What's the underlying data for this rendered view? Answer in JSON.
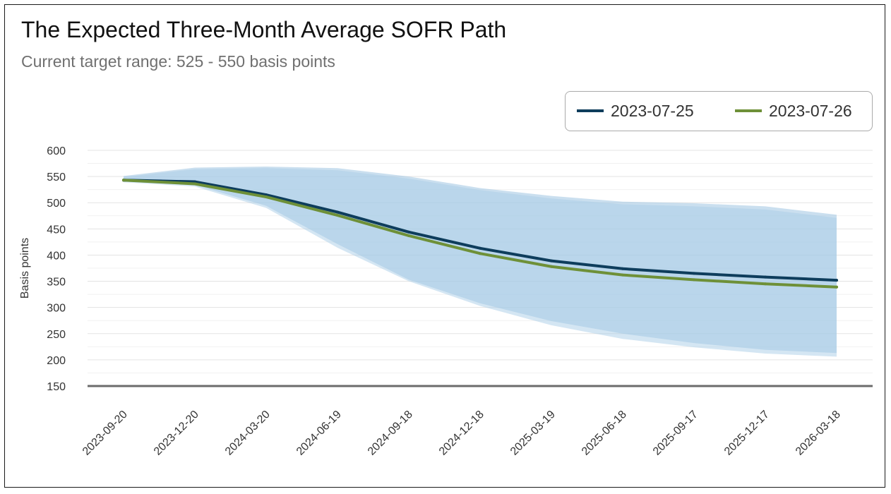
{
  "chart_data": {
    "type": "line",
    "title": "The Expected Three-Month Average SOFR Path",
    "subtitle": "Current target range: 525 - 550 basis points",
    "xlabel": "",
    "ylabel": "Basis points",
    "ylim": [
      150,
      600
    ],
    "yticks": [
      150,
      200,
      250,
      300,
      350,
      400,
      450,
      500,
      550,
      600
    ],
    "categories": [
      "2023-09-20",
      "2023-12-20",
      "2024-03-20",
      "2024-06-19",
      "2024-09-18",
      "2024-12-18",
      "2025-03-19",
      "2025-06-18",
      "2025-09-17",
      "2025-12-17",
      "2026-03-18"
    ],
    "series": [
      {
        "name": "2023-07-25",
        "color": "#0e3d5c",
        "values": [
          543,
          540,
          515,
          482,
          444,
          413,
          389,
          374,
          365,
          358,
          352
        ]
      },
      {
        "name": "2023-07-26",
        "color": "#6e9038",
        "values": [
          543,
          536,
          511,
          476,
          437,
          403,
          378,
          362,
          353,
          345,
          339
        ]
      }
    ],
    "bands": [
      {
        "name": "2023-07-25 range",
        "color": "#9fc5e2",
        "opacity": 0.55,
        "upper": [
          551,
          567,
          569,
          566,
          550,
          528,
          513,
          502,
          499,
          493,
          477
        ],
        "lower": [
          540,
          534,
          494,
          421,
          353,
          308,
          274,
          250,
          232,
          219,
          213
        ]
      },
      {
        "name": "2023-07-26 range",
        "color": "#a9cde8",
        "opacity": 0.5,
        "upper": [
          549,
          564,
          566,
          562,
          546,
          524,
          508,
          497,
          493,
          487,
          471
        ],
        "lower": [
          539,
          531,
          490,
          414,
          350,
          303,
          266,
          240,
          224,
          212,
          206
        ]
      }
    ],
    "legend_position": "top-right",
    "grid": true
  }
}
